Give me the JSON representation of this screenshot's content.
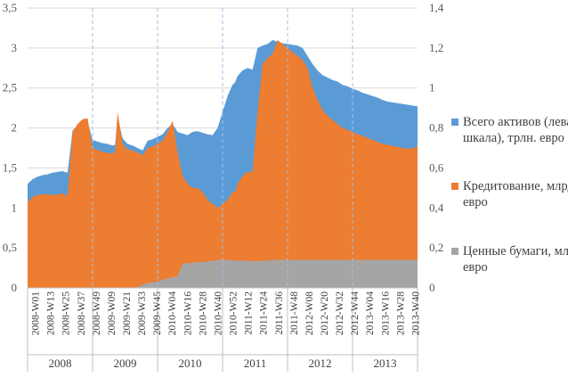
{
  "chart_data": {
    "type": "area",
    "title": "",
    "xlabel": "",
    "ylabel": "",
    "y_left": {
      "range": [
        0,
        3.5
      ],
      "ticks": [
        "0",
        "0,5",
        "1",
        "1,5",
        "2",
        "2,5",
        "3",
        "3,5"
      ]
    },
    "y_right": {
      "range": [
        0,
        1.4
      ],
      "ticks": [
        "0",
        "0,2",
        "0,4",
        "0,6",
        "0,8",
        "1",
        "1,2",
        "1,4"
      ]
    },
    "x_tick_labels": [
      "2008-W01",
      "2008-W13",
      "2008-W25",
      "2008-W37",
      "2008-W49",
      "2009-W09",
      "2009-W21",
      "2009-W33",
      "2009-W45",
      "2010-W04",
      "2010-W16",
      "2010-W28",
      "2010-W40",
      "2010-W52",
      "2011-W12",
      "2011-W24",
      "2011-W36",
      "2011-W48",
      "2012-W08",
      "2012-W20",
      "2012-W32",
      "2012-W44",
      "2013-W04",
      "2013-W16",
      "2013-W28",
      "2013-W40"
    ],
    "years": [
      "2008",
      "2009",
      "2010",
      "2011",
      "2012",
      "2013"
    ],
    "x_weeks": [
      0,
      4,
      8,
      12,
      16,
      20,
      24,
      28,
      32,
      36,
      38,
      40,
      44,
      48,
      52,
      56,
      60,
      64,
      68,
      70,
      72,
      76,
      80,
      84,
      88,
      92,
      96,
      100,
      104,
      108,
      112,
      116,
      120,
      124,
      128,
      132,
      136,
      140,
      144,
      148,
      152,
      156,
      160,
      164,
      166,
      168,
      172,
      176,
      180,
      184,
      188,
      192,
      196,
      200,
      204,
      208,
      212,
      216,
      220,
      224,
      228,
      232,
      236,
      240,
      244,
      248,
      252,
      256,
      260,
      264,
      268,
      272,
      276,
      280,
      284,
      288,
      292,
      296,
      300,
      304,
      308,
      312
    ],
    "legend_position": "right",
    "series": [
      {
        "name": "Всего активов (левая шкала), трлн. евро",
        "axis": "left",
        "color": "#5b9bd5",
        "values": [
          1.3,
          1.36,
          1.39,
          1.41,
          1.42,
          1.44,
          1.45,
          1.46,
          1.44,
          1.97,
          2.0,
          2.03,
          2.07,
          2.08,
          1.85,
          1.83,
          1.81,
          1.8,
          1.78,
          1.79,
          2.14,
          1.87,
          1.8,
          1.78,
          1.75,
          1.72,
          1.84,
          1.86,
          1.89,
          1.92,
          2.0,
          2.05,
          1.95,
          1.93,
          1.91,
          1.95,
          1.96,
          1.94,
          1.92,
          1.91,
          2.0,
          2.2,
          2.4,
          2.54,
          2.57,
          2.65,
          2.72,
          2.75,
          2.73,
          3.0,
          3.03,
          3.05,
          3.1,
          3.08,
          3.06,
          3.05,
          3.04,
          3.03,
          3.0,
          2.9,
          2.8,
          2.72,
          2.66,
          2.63,
          2.6,
          2.58,
          2.54,
          2.52,
          2.49,
          2.47,
          2.44,
          2.42,
          2.4,
          2.38,
          2.35,
          2.33,
          2.32,
          2.31,
          2.3,
          2.29,
          2.28,
          2.27
        ]
      },
      {
        "name": "Кредитование, млрд. евро",
        "axis": "right",
        "color": "#ed7d31",
        "values": [
          0.428,
          0.456,
          0.464,
          0.468,
          0.468,
          0.464,
          0.468,
          0.472,
          0.46,
          0.78,
          0.8,
          0.82,
          0.844,
          0.848,
          0.7,
          0.69,
          0.68,
          0.676,
          0.672,
          0.68,
          0.88,
          0.72,
          0.692,
          0.688,
          0.676,
          0.664,
          0.7,
          0.708,
          0.72,
          0.736,
          0.78,
          0.836,
          0.68,
          0.56,
          0.52,
          0.5,
          0.5,
          0.48,
          0.44,
          0.42,
          0.4,
          0.42,
          0.44,
          0.48,
          0.48,
          0.52,
          0.56,
          0.58,
          0.58,
          0.88,
          1.12,
          1.15,
          1.17,
          1.24,
          1.22,
          1.2,
          1.18,
          1.16,
          1.14,
          1.1,
          1.0,
          0.94,
          0.89,
          0.86,
          0.84,
          0.82,
          0.8,
          0.79,
          0.78,
          0.77,
          0.76,
          0.75,
          0.74,
          0.73,
          0.72,
          0.715,
          0.71,
          0.705,
          0.7,
          0.698,
          0.696,
          0.71
        ]
      },
      {
        "name": "Ценные бумаги, млрд. евро",
        "axis": "right",
        "color": "#a5a5a5",
        "values": [
          0,
          0,
          0,
          0,
          0,
          0,
          0,
          0,
          0,
          0,
          0,
          0,
          0,
          0,
          0,
          0,
          0,
          0,
          0,
          0,
          0,
          0,
          0,
          0,
          0.004,
          0.016,
          0.024,
          0.028,
          0.032,
          0.04,
          0.048,
          0.052,
          0.06,
          0.12,
          0.124,
          0.126,
          0.128,
          0.13,
          0.132,
          0.136,
          0.138,
          0.14,
          0.14,
          0.138,
          0.138,
          0.136,
          0.136,
          0.136,
          0.134,
          0.134,
          0.136,
          0.136,
          0.14,
          0.14,
          0.14,
          0.14,
          0.14,
          0.14,
          0.14,
          0.14,
          0.14,
          0.14,
          0.14,
          0.14,
          0.14,
          0.14,
          0.14,
          0.14,
          0.14,
          0.14,
          0.14,
          0.14,
          0.14,
          0.14,
          0.14,
          0.14,
          0.14,
          0.14,
          0.14,
          0.14,
          0.14,
          0.14
        ]
      }
    ]
  }
}
